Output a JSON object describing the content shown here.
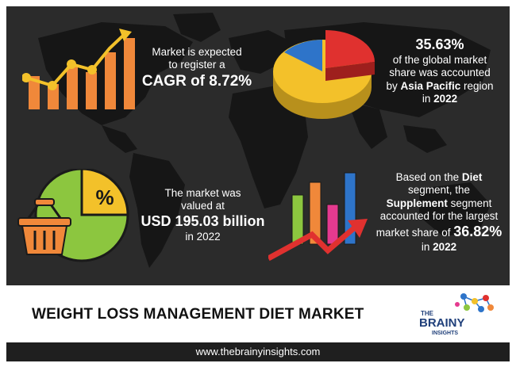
{
  "stat_cagr": {
    "line1": "Market is expected",
    "line2": "to register a",
    "value": "CAGR of 8.72%"
  },
  "stat_asia": {
    "value": "35.63%",
    "line1": "of the global market",
    "line2": "share was accounted",
    "line3_prefix": "by",
    "line3_bold": "Asia Pacific",
    "line3_suffix": "region",
    "line4_prefix": "in",
    "line4_bold": "2022"
  },
  "stat_market": {
    "line1": "The market was",
    "line2": "valued at",
    "value": "USD 195.03 billion",
    "line3": "in 2022"
  },
  "stat_segment": {
    "line1_prefix": "Based on the",
    "line1_bold": "Diet",
    "line2": "segment, the",
    "line3_bold": "Supplement",
    "line3_suffix": "segment",
    "line4": "accounted for the largest",
    "line5_prefix": "market share of",
    "line5_bold": "36.82%",
    "line6_prefix": "in",
    "line6_bold": "2022"
  },
  "percent_icon_text": "%",
  "title": "WEIGHT LOSS MANAGEMENT DIET MARKET",
  "logo": {
    "the": "THE",
    "brainy": "BRAINY",
    "insights": "INSIGHTS"
  },
  "website": "www.thebrainyinsights.com",
  "colors": {
    "background": "#2b2b2b",
    "map": "#151515",
    "orange": "#f0883a",
    "yellow": "#f3c12a",
    "green": "#8cc63f",
    "red": "#e0312f",
    "blue": "#2e74c9",
    "pink": "#e53a8f"
  }
}
